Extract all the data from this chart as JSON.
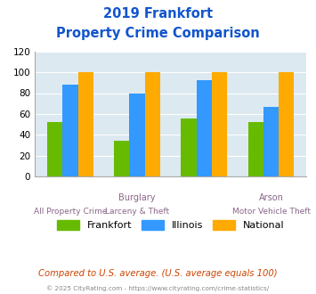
{
  "title_line1": "2019 Frankfort",
  "title_line2": "Property Crime Comparison",
  "categories": [
    "All Property Crime",
    "Burglary",
    "Larceny & Theft",
    "Motor Vehicle Theft"
  ],
  "top_labels": [
    "",
    "Burglary",
    "",
    "Arson"
  ],
  "bottom_labels": [
    "All Property Crime",
    "Larceny & Theft",
    "",
    "Motor Vehicle Theft"
  ],
  "groups": {
    "Frankfort": [
      52,
      34,
      56,
      52
    ],
    "Illinois": [
      88,
      80,
      92,
      67
    ],
    "National": [
      100,
      100,
      100,
      100
    ]
  },
  "colors": {
    "Frankfort": "#66bb00",
    "Illinois": "#3399ff",
    "National": "#ffaa00"
  },
  "ylim": [
    0,
    120
  ],
  "yticks": [
    0,
    20,
    40,
    60,
    80,
    100,
    120
  ],
  "bg_color": "#dce9f0",
  "title_color": "#1155cc",
  "xlabel_color": "#886688",
  "footer_text": "Compared to U.S. average. (U.S. average equals 100)",
  "credit_text": "© 2025 CityRating.com - https://www.cityrating.com/crime-statistics/",
  "footer_color": "#cc4400",
  "credit_color": "#888888"
}
